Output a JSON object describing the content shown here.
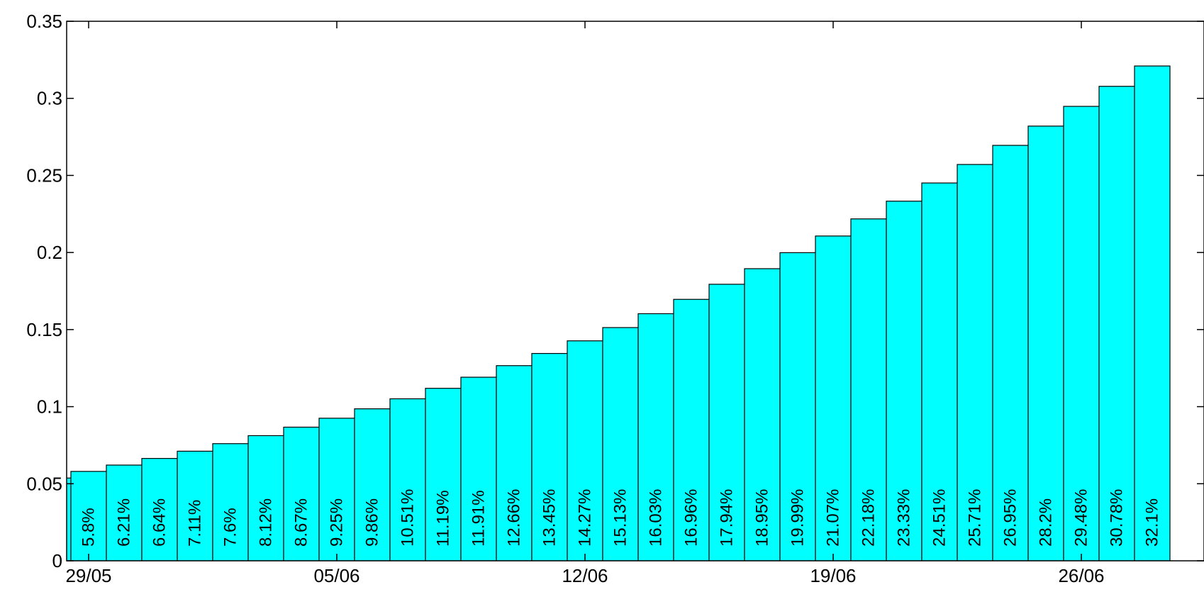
{
  "chart_data": {
    "type": "bar",
    "title": "",
    "xlabel": "",
    "ylabel": "",
    "ylim": [
      0,
      0.35
    ],
    "yticks": [
      "0",
      "0.05",
      "0.1",
      "0.15",
      "0.2",
      "0.25",
      "0.3",
      "0.35"
    ],
    "xtick_labels": [
      "29/05",
      "05/06",
      "12/06",
      "19/06",
      "26/06"
    ],
    "xtick_positions": [
      1,
      8,
      15,
      22,
      29
    ],
    "bar_color": "#00ffff",
    "grid": false,
    "values": [
      0.0537,
      0.058,
      0.0621,
      0.0664,
      0.0711,
      0.076,
      0.0812,
      0.0867,
      0.0925,
      0.0986,
      0.1051,
      0.1119,
      0.1191,
      0.1266,
      0.1345,
      0.1427,
      0.1513,
      0.1603,
      0.1696,
      0.1794,
      0.1895,
      0.1999,
      0.2107,
      0.2218,
      0.2333,
      0.2451,
      0.2571,
      0.2695,
      0.282,
      0.2948,
      0.3078,
      0.321
    ],
    "labels": [
      "",
      "5.8%",
      "6.21%",
      "6.64%",
      "7.11%",
      "7.6%",
      "8.12%",
      "8.67%",
      "9.25%",
      "9.86%",
      "10.51%",
      "11.19%",
      "11.91%",
      "12.66%",
      "13.45%",
      "14.27%",
      "15.13%",
      "16.03%",
      "16.96%",
      "17.94%",
      "18.95%",
      "19.99%",
      "21.07%",
      "22.18%",
      "23.33%",
      "24.51%",
      "25.71%",
      "26.95%",
      "28.2%",
      "29.48%",
      "30.78%",
      "32.1%"
    ]
  }
}
